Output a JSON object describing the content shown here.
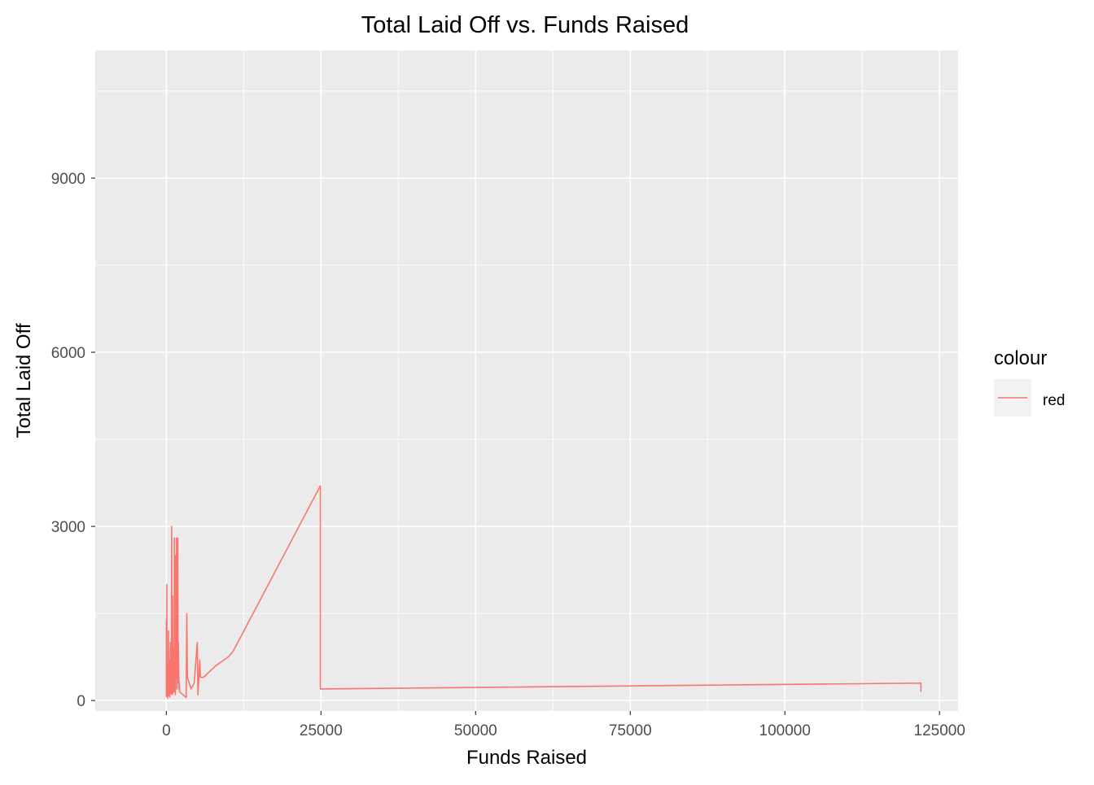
{
  "chart_data": {
    "type": "line",
    "title": "Total Laid Off vs. Funds Raised",
    "xlabel": "Funds Raised",
    "ylabel": "Total Laid Off",
    "xlim": [
      -11500,
      128000
    ],
    "ylim": [
      -180,
      11200
    ],
    "x_ticks": [
      0,
      25000,
      50000,
      75000,
      100000,
      125000
    ],
    "x_tick_labels": [
      "0",
      "25000",
      "50000",
      "75000",
      "100000",
      "125000"
    ],
    "y_ticks": [
      0,
      3000,
      6000,
      9000
    ],
    "y_tick_labels": [
      "0",
      "3000",
      "6000",
      "9000"
    ],
    "grid": true,
    "legend": {
      "title": "colour",
      "position": "right",
      "entries": [
        {
          "label": "red",
          "color": "#F8766D"
        }
      ]
    },
    "series": [
      {
        "name": "red",
        "color": "#F8766D",
        "points": [
          [
            0,
            60
          ],
          [
            0,
            1400
          ],
          [
            20,
            300
          ],
          [
            40,
            900
          ],
          [
            60,
            100
          ],
          [
            80,
            2000
          ],
          [
            100,
            200
          ],
          [
            150,
            600
          ],
          [
            200,
            40
          ],
          [
            250,
            500
          ],
          [
            300,
            150
          ],
          [
            350,
            1200
          ],
          [
            400,
            80
          ],
          [
            450,
            700
          ],
          [
            500,
            300
          ],
          [
            550,
            60
          ],
          [
            600,
            400
          ],
          [
            650,
            1000
          ],
          [
            700,
            120
          ],
          [
            750,
            800
          ],
          [
            800,
            200
          ],
          [
            850,
            3000
          ],
          [
            900,
            100
          ],
          [
            950,
            500
          ],
          [
            1000,
            1800
          ],
          [
            1050,
            120
          ],
          [
            1100,
            600
          ],
          [
            1150,
            250
          ],
          [
            1200,
            900
          ],
          [
            1250,
            150
          ],
          [
            1300,
            2800
          ],
          [
            1350,
            300
          ],
          [
            1400,
            1500
          ],
          [
            1450,
            100
          ],
          [
            1500,
            2500
          ],
          [
            1550,
            400
          ],
          [
            1600,
            700
          ],
          [
            1650,
            2800
          ],
          [
            1700,
            200
          ],
          [
            1750,
            1100
          ],
          [
            1800,
            600
          ],
          [
            1850,
            2800
          ],
          [
            1900,
            300
          ],
          [
            1950,
            1000
          ],
          [
            2000,
            500
          ],
          [
            2050,
            200
          ],
          [
            2100,
            300
          ],
          [
            2150,
            150
          ],
          [
            3200,
            50
          ],
          [
            3300,
            1500
          ],
          [
            3400,
            400
          ],
          [
            4000,
            200
          ],
          [
            4500,
            300
          ],
          [
            5000,
            1000
          ],
          [
            5100,
            100
          ],
          [
            5400,
            700
          ],
          [
            5500,
            400
          ],
          [
            6000,
            400
          ],
          [
            8000,
            600
          ],
          [
            10000,
            750
          ],
          [
            10800,
            850
          ],
          [
            24900,
            3700
          ],
          [
            24900,
            200
          ],
          [
            122000,
            300
          ],
          [
            122000,
            150
          ]
        ]
      }
    ]
  }
}
